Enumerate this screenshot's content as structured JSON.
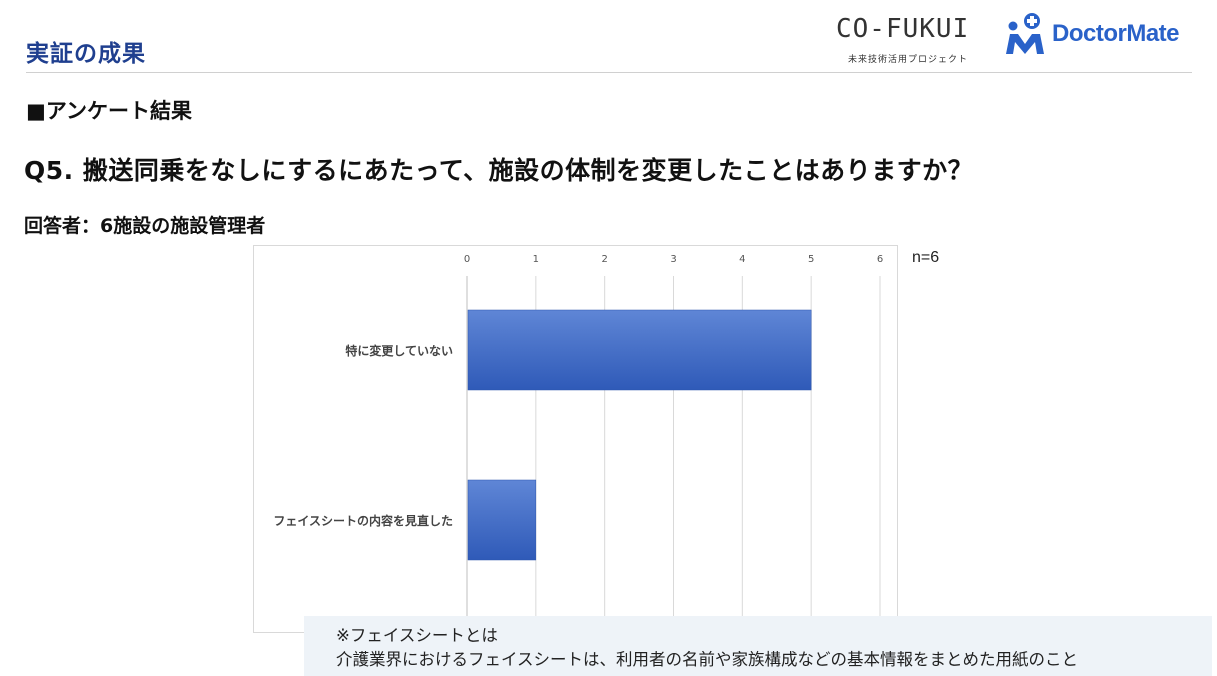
{
  "header": {
    "title": "実証の成果",
    "logo_cofukui": {
      "wordmark": "CO-FUKUI",
      "tagline": "未来技術活用プロジェクト"
    },
    "logo_doctormate": {
      "text": "DoctorMate"
    }
  },
  "section_heading": "■アンケート結果",
  "question": "Q5.  搬送同乗をなしにするにあたって、施設の体制を変更したことはありますか？",
  "respondents": "回答者：6施設の施設管理者",
  "n_label": "n=6",
  "chart_data": {
    "type": "bar",
    "orientation": "horizontal",
    "categories": [
      "特に変更していない",
      "フェイスシートの内容を見直した"
    ],
    "values": [
      5,
      1
    ],
    "xlim": [
      0,
      6
    ],
    "ticks": [
      0,
      1,
      2,
      3,
      4,
      5,
      6
    ],
    "x_axis_position": "top",
    "grid": true,
    "bar_color": "#3a66c4",
    "title": "",
    "xlabel": "",
    "ylabel": ""
  },
  "note": {
    "line1": "※フェイスシートとは",
    "line2": "介護業界におけるフェイスシートは、利用者の名前や家族構成などの基本情報をまとめた用紙のこと"
  },
  "colors": {
    "title": "#1f3f8f",
    "brand_blue": "#2a62c9",
    "note_bg": "#eef3f8"
  }
}
